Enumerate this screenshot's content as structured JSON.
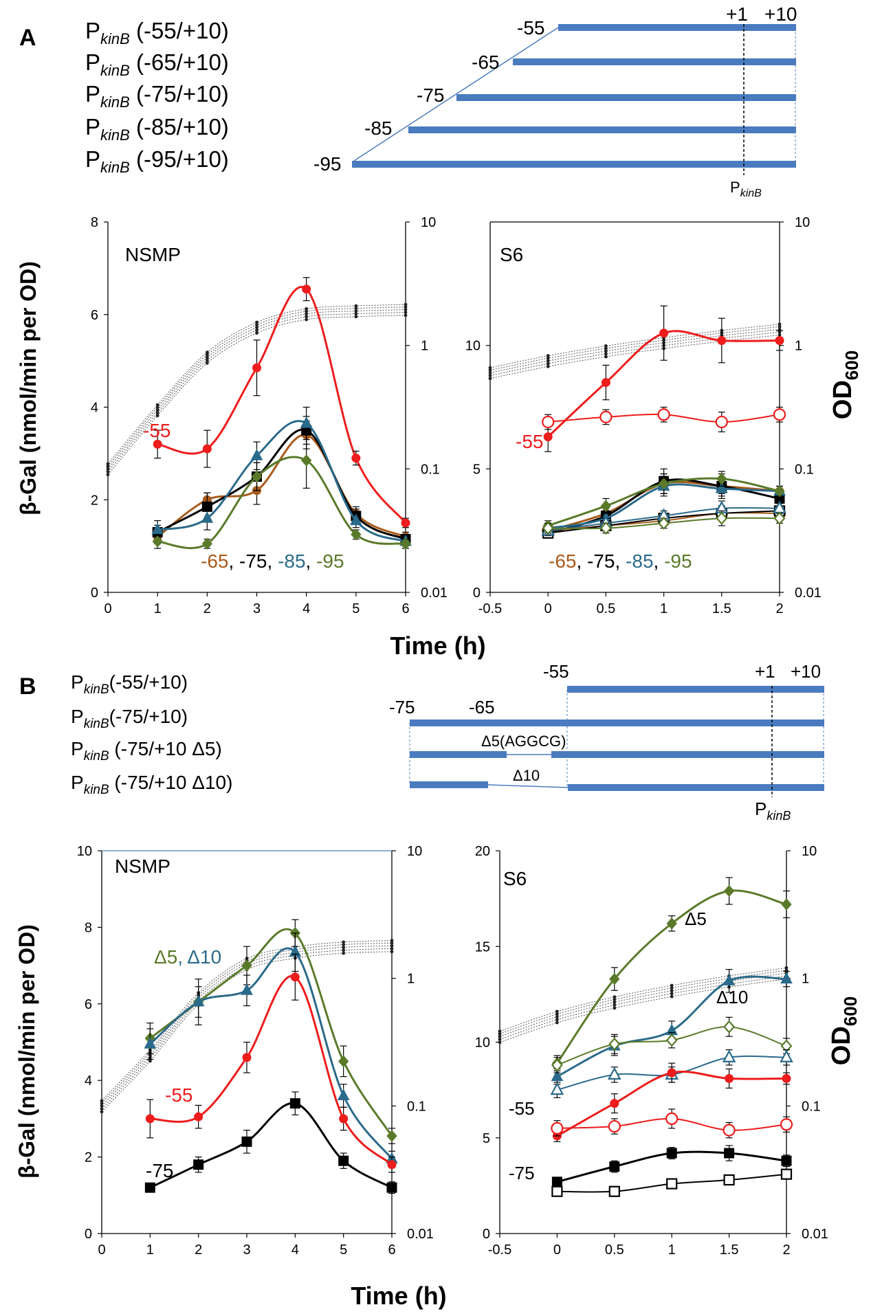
{
  "colors": {
    "construct_bar": "#4a7bbf",
    "red": "#ee1c1c",
    "brown": "#a85a1a",
    "black": "#000000",
    "teal": "#2a6a8a",
    "olive": "#5a7a2a",
    "growth": "#333333"
  },
  "panelA": {
    "label": "A",
    "constructs": [
      {
        "prefix": "P",
        "sub": "kinB",
        "suffix": " (-55/+10)",
        "start": "-55"
      },
      {
        "prefix": "P",
        "sub": "kinB",
        "suffix": " (-65/+10)",
        "start": "-65"
      },
      {
        "prefix": "P",
        "sub": "kinB",
        "suffix": " (-75/+10)",
        "start": "-75"
      },
      {
        "prefix": "P",
        "sub": "kinB",
        "suffix": " (-85/+10)",
        "start": "-85"
      },
      {
        "prefix": "P",
        "sub": "kinB",
        "suffix": " (-95/+10)",
        "start": "-95"
      }
    ],
    "map_labels": {
      "plus1": "+1",
      "plus10": "+10",
      "promoter_p": "P",
      "promoter_sub": "kinB"
    }
  },
  "panelB": {
    "label": "B",
    "constructs": [
      {
        "prefix": "P",
        "sub": "kinB",
        "suffix": "(-55/+10)"
      },
      {
        "prefix": "P",
        "sub": "kinB",
        "suffix": "(-75/+10)"
      },
      {
        "prefix": "P",
        "sub": "kinB",
        "suffix": " (-75/+10 Δ5)"
      },
      {
        "prefix": "P",
        "sub": "kinB",
        "suffix": " (-75/+10 Δ10)"
      }
    ],
    "map_labels": {
      "m75": "-75",
      "m65": "-65",
      "m55": "-55",
      "plus1": "+1",
      "plus10": "+10",
      "d5": "Δ5(AGGCG)",
      "d10": "Δ10",
      "promoter_p": "P",
      "promoter_sub": "kinB"
    }
  },
  "shared_labels": {
    "ylabel": "β-Gal (nmol/min per OD)",
    "y2label_main": "OD",
    "y2label_sub": "600",
    "xlabel": "Time (h)"
  },
  "chart_data": [
    {
      "id": "A_NSMP",
      "type": "line",
      "title": "NSMP",
      "xlabel": "Time (h)",
      "ylabel": "β-Gal (nmol/min per OD)",
      "y2label": "OD600",
      "xlim": [
        0,
        6
      ],
      "ylim": [
        0,
        8
      ],
      "y2lim": [
        0.01,
        10
      ],
      "y2scale": "log",
      "xticks": [
        "0",
        "1",
        "2",
        "3",
        "4",
        "5",
        "6"
      ],
      "yticks": [
        "0",
        "2",
        "4",
        "6",
        "8"
      ],
      "y2ticks": [
        "0.01",
        "0.1",
        "1",
        "10"
      ],
      "series": [
        {
          "name": "-55",
          "color": "#ee1c1c",
          "marker": "circle",
          "filled": true,
          "x": [
            1,
            2,
            3,
            4,
            5,
            6
          ],
          "y": [
            3.2,
            3.1,
            4.85,
            6.55,
            2.9,
            1.5
          ],
          "err": [
            0.3,
            0.4,
            0.6,
            0.25,
            0.15,
            0.1
          ]
        },
        {
          "name": "-65",
          "color": "#a85a1a",
          "marker": "circle",
          "filled": true,
          "x": [
            1,
            2,
            3,
            4,
            5,
            6
          ],
          "y": [
            1.2,
            2.0,
            2.2,
            3.4,
            1.7,
            1.2
          ],
          "err": [
            0.15,
            0.15,
            0.3,
            0.3,
            0.15,
            0.1
          ]
        },
        {
          "name": "-75",
          "color": "#000000",
          "marker": "square",
          "filled": true,
          "x": [
            1,
            2,
            3,
            4,
            5,
            6
          ],
          "y": [
            1.3,
            1.85,
            2.5,
            3.5,
            1.65,
            1.15
          ],
          "err": [
            0.15,
            0.3,
            0.3,
            0.3,
            0.15,
            0.1
          ]
        },
        {
          "name": "-85",
          "color": "#2a6a8a",
          "marker": "triangle",
          "filled": true,
          "x": [
            1,
            2,
            3,
            4,
            5,
            6
          ],
          "y": [
            1.35,
            1.6,
            2.95,
            3.65,
            1.55,
            1.1
          ],
          "err": [
            0.2,
            0.25,
            0.3,
            0.35,
            0.15,
            0.1
          ]
        },
        {
          "name": "-95",
          "color": "#5a7a2a",
          "marker": "diamond",
          "filled": true,
          "x": [
            1,
            2,
            3,
            4,
            5,
            6
          ],
          "y": [
            1.1,
            1.05,
            2.5,
            2.85,
            1.25,
            1.05
          ],
          "err": [
            0.15,
            0.1,
            0.3,
            0.6,
            0.1,
            0.1
          ]
        }
      ],
      "growth_od": {
        "x": [
          0,
          1,
          2,
          3,
          4,
          5,
          6
        ],
        "y": [
          0.1,
          0.3,
          0.8,
          1.4,
          1.8,
          1.9,
          1.95
        ]
      },
      "annotations": {
        "top": "-55",
        "bottom": [
          "-65",
          ", ",
          "-75",
          ", ",
          "-85",
          ", ",
          "-95"
        ]
      }
    },
    {
      "id": "A_S6",
      "type": "line",
      "title": "S6",
      "xlabel": "Time (h)",
      "ylabel": "β-Gal (nmol/min per OD)",
      "y2label": "OD600",
      "xlim": [
        -0.5,
        2
      ],
      "ylim": [
        0,
        15
      ],
      "y2lim": [
        0.01,
        10
      ],
      "y2scale": "log",
      "xticks": [
        "-0.5",
        "0",
        "0.5",
        "1",
        "1.5",
        "2"
      ],
      "yticks": [
        "0",
        "5",
        "10"
      ],
      "y2ticks": [
        "0.01",
        "0.1",
        "1",
        "10"
      ],
      "series": [
        {
          "name": "-55",
          "color": "#ee1c1c",
          "marker": "circle",
          "filled": true,
          "x": [
            0,
            0.5,
            1,
            1.5,
            2
          ],
          "y": [
            6.3,
            8.5,
            10.5,
            10.2,
            10.2
          ],
          "err": [
            0.6,
            0.7,
            1.1,
            0.9,
            0.4
          ]
        },
        {
          "name": "-55 (open)",
          "color": "#ee1c1c",
          "marker": "circle",
          "filled": false,
          "x": [
            0,
            0.5,
            1,
            1.5,
            2
          ],
          "y": [
            6.9,
            7.1,
            7.2,
            6.9,
            7.2
          ],
          "err": [
            0.3,
            0.3,
            0.3,
            0.4,
            0.3
          ]
        },
        {
          "name": "-65",
          "color": "#a85a1a",
          "marker": "circle",
          "filled": true,
          "x": [
            0,
            0.5,
            1,
            1.5,
            2
          ],
          "y": [
            2.5,
            3.2,
            4.4,
            4.3,
            4.1
          ],
          "err": [
            0.2,
            0.3,
            0.4,
            0.5,
            0.2
          ]
        },
        {
          "name": "-75",
          "color": "#000000",
          "marker": "square",
          "filled": true,
          "x": [
            0,
            0.5,
            1,
            1.5,
            2
          ],
          "y": [
            2.4,
            3.1,
            4.5,
            4.3,
            3.8
          ],
          "err": [
            0.2,
            0.3,
            0.5,
            0.3,
            0.2
          ]
        },
        {
          "name": "-85",
          "color": "#2a6a8a",
          "marker": "triangle",
          "filled": true,
          "x": [
            0,
            0.5,
            1,
            1.5,
            2
          ],
          "y": [
            2.6,
            3.0,
            4.3,
            4.2,
            4.1
          ],
          "err": [
            0.2,
            0.3,
            0.4,
            0.3,
            0.2
          ]
        },
        {
          "name": "-95",
          "color": "#5a7a2a",
          "marker": "diamond",
          "filled": true,
          "x": [
            0,
            0.5,
            1,
            1.5,
            2
          ],
          "y": [
            2.7,
            3.5,
            4.4,
            4.6,
            4.1
          ],
          "err": [
            0.2,
            0.3,
            0.4,
            0.3,
            0.2
          ]
        },
        {
          "name": "-65 (open)",
          "color": "#a85a1a",
          "marker": "circle",
          "filled": false,
          "x": [
            0,
            0.5,
            1,
            1.5,
            2
          ],
          "y": [
            2.5,
            2.7,
            2.9,
            3.2,
            3.2
          ],
          "err": [
            0.2,
            0.2,
            0.2,
            0.3,
            0.2
          ]
        },
        {
          "name": "-75 (open)",
          "color": "#000000",
          "marker": "square",
          "filled": false,
          "x": [
            0,
            0.5,
            1,
            1.5,
            2
          ],
          "y": [
            2.4,
            2.7,
            3.0,
            3.2,
            3.3
          ],
          "err": [
            0.2,
            0.2,
            0.2,
            0.3,
            0.2
          ]
        },
        {
          "name": "-85 (open)",
          "color": "#2a6a8a",
          "marker": "triangle",
          "filled": false,
          "x": [
            0,
            0.5,
            1,
            1.5,
            2
          ],
          "y": [
            2.5,
            2.8,
            3.1,
            3.4,
            3.4
          ],
          "err": [
            0.2,
            0.2,
            0.2,
            0.3,
            0.2
          ]
        },
        {
          "name": "-95 (open)",
          "color": "#5a7a2a",
          "marker": "diamond",
          "filled": false,
          "x": [
            0,
            0.5,
            1,
            1.5,
            2
          ],
          "y": [
            2.6,
            2.6,
            2.8,
            3.0,
            3.0
          ],
          "err": [
            0.2,
            0.2,
            0.2,
            0.3,
            0.2
          ]
        }
      ],
      "growth_od": {
        "x": [
          -0.5,
          0,
          0.5,
          1,
          1.5,
          2
        ],
        "y": [
          0.6,
          0.75,
          0.9,
          1.05,
          1.2,
          1.35
        ]
      },
      "annotations": {
        "top": "-55",
        "bottom": [
          "-65",
          ", ",
          "-75",
          ", ",
          "-85",
          ", ",
          "-95"
        ]
      }
    },
    {
      "id": "B_NSMP",
      "type": "line",
      "title": "NSMP",
      "xlabel": "Time (h)",
      "ylabel": "β-Gal (nmol/min per OD)",
      "y2label": "OD600",
      "xlim": [
        0,
        6
      ],
      "ylim": [
        0,
        10
      ],
      "y2lim": [
        0.01,
        10
      ],
      "y2scale": "log",
      "xticks": [
        "0",
        "1",
        "2",
        "3",
        "4",
        "5",
        "6"
      ],
      "yticks": [
        "0",
        "2",
        "4",
        "6",
        "8",
        "10"
      ],
      "y2ticks": [
        "0.01",
        "0.1",
        "1",
        "10"
      ],
      "series": [
        {
          "name": "Δ5",
          "color": "#5a7a2a",
          "marker": "diamond",
          "filled": true,
          "x": [
            1,
            2,
            3,
            4,
            5,
            6
          ],
          "y": [
            5.1,
            6.05,
            7.0,
            7.85,
            4.5,
            2.55
          ],
          "err": [
            0.4,
            0.6,
            0.5,
            0.35,
            0.4,
            0.2
          ]
        },
        {
          "name": "Δ10",
          "color": "#2a6a8a",
          "marker": "triangle",
          "filled": true,
          "x": [
            1,
            2,
            3,
            4,
            5,
            6
          ],
          "y": [
            4.95,
            6.05,
            6.35,
            7.35,
            3.6,
            1.95
          ],
          "err": [
            0.4,
            0.4,
            0.4,
            0.5,
            0.3,
            0.2
          ]
        },
        {
          "name": "-55",
          "color": "#ee1c1c",
          "marker": "circle",
          "filled": true,
          "x": [
            1,
            2,
            3,
            4,
            5,
            6
          ],
          "y": [
            3.0,
            3.05,
            4.6,
            6.7,
            3.0,
            1.8
          ],
          "err": [
            0.5,
            0.3,
            0.4,
            0.6,
            0.3,
            0.2
          ]
        },
        {
          "name": "-75",
          "color": "#000000",
          "marker": "square",
          "filled": true,
          "x": [
            1,
            2,
            3,
            4,
            5,
            6
          ],
          "y": [
            1.2,
            1.8,
            2.4,
            3.4,
            1.9,
            1.2
          ],
          "err": [
            0.05,
            0.2,
            0.3,
            0.3,
            0.2,
            0.15
          ]
        }
      ],
      "growth_od": {
        "x": [
          0,
          1,
          2,
          3,
          4,
          5,
          6
        ],
        "y": [
          0.1,
          0.25,
          0.7,
          1.3,
          1.6,
          1.75,
          1.8
        ]
      },
      "annotations": {
        "d5": "Δ5",
        "sep": ", ",
        "d10": "Δ10",
        "m55": "-55",
        "m75": "-75"
      }
    },
    {
      "id": "B_S6",
      "type": "line",
      "title": "S6",
      "xlabel": "Time (h)",
      "ylabel": "β-Gal (nmol/min per OD)",
      "y2label": "OD600",
      "xlim": [
        -0.5,
        2
      ],
      "ylim": [
        0,
        20
      ],
      "y2lim": [
        0.01,
        10
      ],
      "y2scale": "log",
      "xticks": [
        "-0.5",
        "0",
        "0.5",
        "1",
        "1.5",
        "2"
      ],
      "yticks": [
        "0",
        "5",
        "10",
        "15",
        "20"
      ],
      "y2ticks": [
        "0.01",
        "0.1",
        "1",
        "10"
      ],
      "series": [
        {
          "name": "Δ5",
          "color": "#5a7a2a",
          "marker": "diamond",
          "filled": true,
          "x": [
            0,
            0.5,
            1,
            1.5,
            2
          ],
          "y": [
            8.9,
            13.3,
            16.2,
            17.9,
            17.2
          ],
          "err": [
            0.4,
            0.6,
            0.4,
            0.7,
            0.7
          ]
        },
        {
          "name": "Δ10",
          "color": "#2a6a8a",
          "marker": "triangle",
          "filled": true,
          "x": [
            0,
            0.5,
            1,
            1.5,
            2
          ],
          "y": [
            8.2,
            9.8,
            10.6,
            13.2,
            13.3
          ],
          "err": [
            0.4,
            0.5,
            0.5,
            0.6,
            0.4
          ]
        },
        {
          "name": "Δ5 (open)",
          "color": "#5a7a2a",
          "marker": "diamond",
          "filled": false,
          "x": [
            0,
            0.5,
            1,
            1.5,
            2
          ],
          "y": [
            8.8,
            9.9,
            10.1,
            10.8,
            9.8
          ],
          "err": [
            0.4,
            0.5,
            0.4,
            0.5,
            0.4
          ]
        },
        {
          "name": "Δ10 (open)",
          "color": "#2a6a8a",
          "marker": "triangle",
          "filled": false,
          "x": [
            0,
            0.5,
            1,
            1.5,
            2
          ],
          "y": [
            7.5,
            8.3,
            8.3,
            9.2,
            9.2
          ],
          "err": [
            0.4,
            0.4,
            0.4,
            0.4,
            0.4
          ]
        },
        {
          "name": "-55",
          "color": "#ee1c1c",
          "marker": "circle",
          "filled": true,
          "x": [
            0,
            0.5,
            1,
            1.5,
            2
          ],
          "y": [
            5.1,
            6.8,
            8.4,
            8.1,
            8.1
          ],
          "err": [
            0.3,
            0.5,
            0.5,
            0.5,
            0.3
          ]
        },
        {
          "name": "-55 (open)",
          "color": "#ee1c1c",
          "marker": "circle",
          "filled": false,
          "x": [
            0,
            0.5,
            1,
            1.5,
            2
          ],
          "y": [
            5.5,
            5.6,
            6.0,
            5.4,
            5.7
          ],
          "err": [
            0.4,
            0.4,
            0.5,
            0.4,
            0.4
          ]
        },
        {
          "name": "-75",
          "color": "#000000",
          "marker": "square",
          "filled": true,
          "x": [
            0,
            0.5,
            1,
            1.5,
            2
          ],
          "y": [
            2.7,
            3.5,
            4.2,
            4.2,
            3.8
          ],
          "err": [
            0.2,
            0.3,
            0.3,
            0.4,
            0.3
          ]
        },
        {
          "name": "-75 (open)",
          "color": "#000000",
          "marker": "square",
          "filled": false,
          "x": [
            0,
            0.5,
            1,
            1.5,
            2
          ],
          "y": [
            2.2,
            2.2,
            2.6,
            2.8,
            3.1
          ],
          "err": [
            0.1,
            0.1,
            0.1,
            0.2,
            0.2
          ]
        }
      ],
      "growth_od": {
        "x": [
          -0.5,
          0,
          0.5,
          1,
          1.5,
          2
        ],
        "y": [
          0.35,
          0.5,
          0.65,
          0.8,
          0.95,
          1.1
        ]
      },
      "annotations": {
        "d5": "Δ5",
        "d10": "Δ10",
        "m55": "-55",
        "m75": "-75"
      }
    }
  ]
}
